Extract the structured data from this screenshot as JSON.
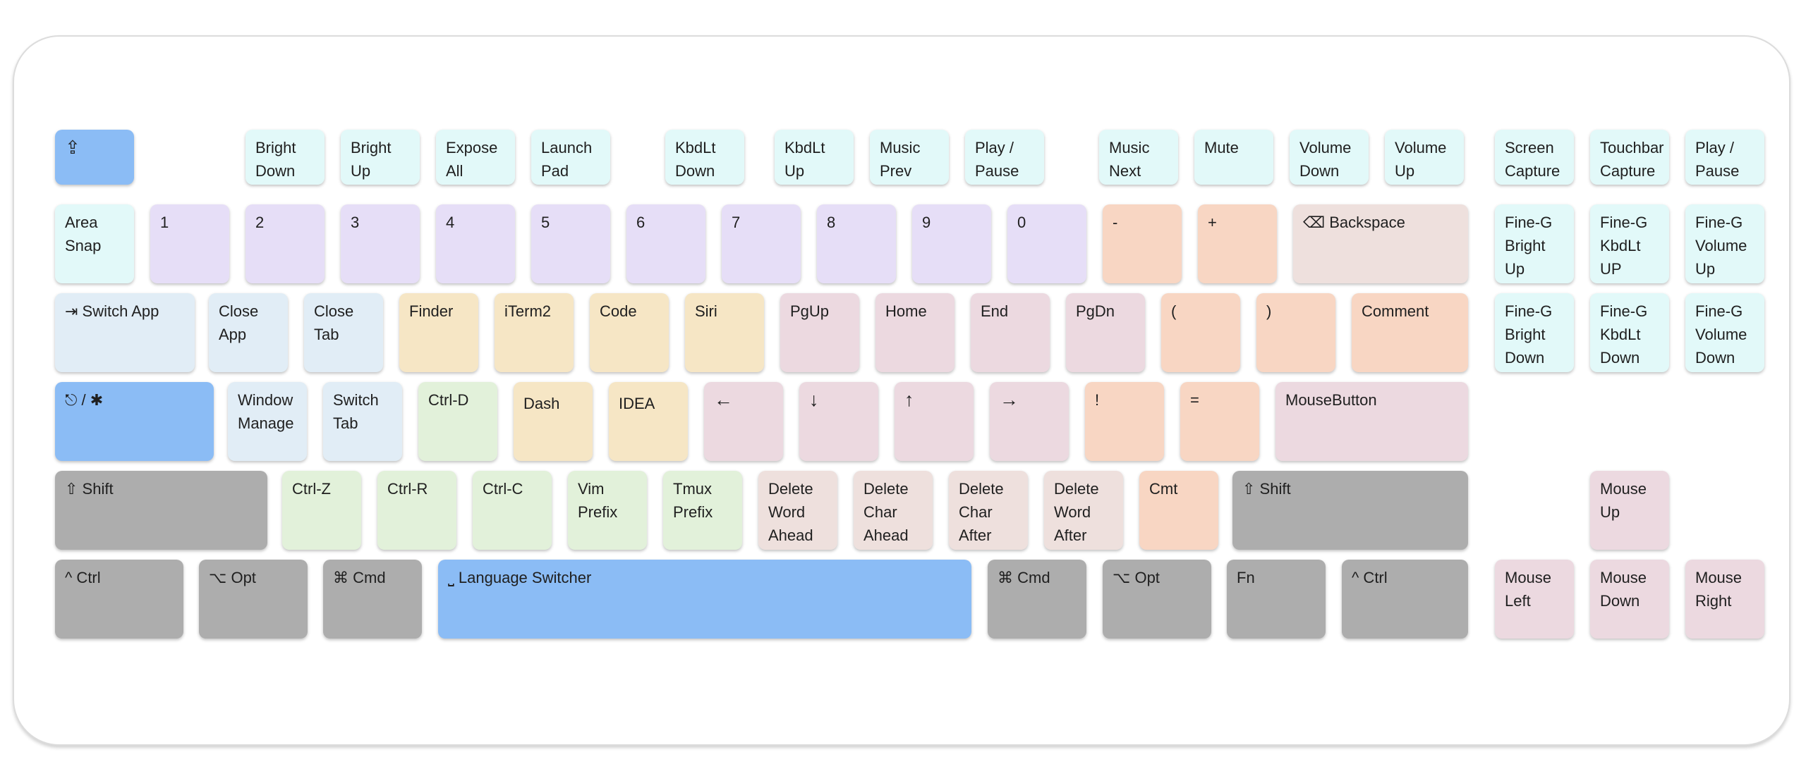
{
  "keyboard": {
    "rows": [
      [
        {
          "name": "fn-toggle-key",
          "label": "⇪",
          "color": "c-blue"
        },
        {
          "name": "bright-down-key",
          "label": "Bright\nDown",
          "color": "c-cyan"
        },
        {
          "name": "bright-up-key",
          "label": "Bright\nUp",
          "color": "c-cyan"
        },
        {
          "name": "expose-all-key",
          "label": "Expose\nAll",
          "color": "c-cyan"
        },
        {
          "name": "launch-pad-key",
          "label": "Launch\nPad",
          "color": "c-cyan"
        },
        {
          "name": "kbdlt-down-key",
          "label": "KbdLt\nDown",
          "color": "c-cyan"
        },
        {
          "name": "kbdlt-up-key",
          "label": "KbdLt\nUp",
          "color": "c-cyan"
        },
        {
          "name": "music-prev-key",
          "label": "Music\nPrev",
          "color": "c-cyan"
        },
        {
          "name": "play-pause-key",
          "label": "Play /\nPause",
          "color": "c-cyan"
        },
        {
          "name": "music-next-key",
          "label": "Music\nNext",
          "color": "c-cyan"
        },
        {
          "name": "mute-key",
          "label": "Mute",
          "color": "c-cyan"
        },
        {
          "name": "volume-down-key",
          "label": "Volume\nDown",
          "color": "c-cyan"
        },
        {
          "name": "volume-up-key",
          "label": "Volume\nUp",
          "color": "c-cyan"
        },
        {
          "name": "screen-capture-key",
          "label": "Screen\nCapture",
          "color": "c-cyan"
        },
        {
          "name": "touchbar-capture-key",
          "label": "Touchbar\nCapture",
          "color": "c-cyan"
        },
        {
          "name": "play-pause-key-right",
          "label": "Play /\nPause",
          "color": "c-cyan"
        }
      ],
      [
        {
          "name": "area-snap-key",
          "label": "Area\nSnap",
          "color": "c-cyan"
        },
        {
          "name": "key-1",
          "label": "1",
          "color": "c-purple"
        },
        {
          "name": "key-2",
          "label": "2",
          "color": "c-purple"
        },
        {
          "name": "key-3",
          "label": "3",
          "color": "c-purple"
        },
        {
          "name": "key-4",
          "label": "4",
          "color": "c-purple"
        },
        {
          "name": "key-5",
          "label": "5",
          "color": "c-purple"
        },
        {
          "name": "key-6",
          "label": "6",
          "color": "c-purple"
        },
        {
          "name": "key-7",
          "label": "7",
          "color": "c-purple"
        },
        {
          "name": "key-8",
          "label": "8",
          "color": "c-purple"
        },
        {
          "name": "key-9",
          "label": "9",
          "color": "c-purple"
        },
        {
          "name": "key-0",
          "label": "0",
          "color": "c-purple"
        },
        {
          "name": "minus-key",
          "label": "-",
          "color": "c-peach"
        },
        {
          "name": "plus-key",
          "label": "+",
          "color": "c-peach"
        },
        {
          "name": "backspace-key",
          "label": "⌫ Backspace",
          "color": "c-bs"
        },
        {
          "name": "fine-bright-up-key",
          "label": "Fine-G\nBright\nUp",
          "color": "c-cyan"
        },
        {
          "name": "fine-kbdlt-up-key",
          "label": "Fine-G\nKbdLt\nUP",
          "color": "c-cyan"
        },
        {
          "name": "fine-volume-up-key",
          "label": "Fine-G\nVolume\nUp",
          "color": "c-cyan"
        }
      ],
      [
        {
          "name": "switch-app-key",
          "label": "⇥ Switch App",
          "color": "c-sky"
        },
        {
          "name": "close-app-key",
          "label": "Close\nApp",
          "color": "c-sky"
        },
        {
          "name": "close-tab-key",
          "label": "Close\nTab",
          "color": "c-sky"
        },
        {
          "name": "finder-key",
          "label": "Finder",
          "color": "c-cream"
        },
        {
          "name": "iterm2-key",
          "label": "iTerm2",
          "color": "c-cream"
        },
        {
          "name": "code-key",
          "label": "Code",
          "color": "c-cream"
        },
        {
          "name": "siri-key",
          "label": "Siri",
          "color": "c-cream"
        },
        {
          "name": "pgup-key",
          "label": "PgUp",
          "color": "c-pink"
        },
        {
          "name": "home-key",
          "label": "Home",
          "color": "c-pink"
        },
        {
          "name": "end-key",
          "label": "End",
          "color": "c-pink"
        },
        {
          "name": "pgdn-key",
          "label": "PgDn",
          "color": "c-pink"
        },
        {
          "name": "open-paren-key",
          "label": "(",
          "color": "c-peach"
        },
        {
          "name": "close-paren-key",
          "label": ")",
          "color": "c-peach"
        },
        {
          "name": "comment-key",
          "label": "Comment",
          "color": "c-peach"
        },
        {
          "name": "fine-bright-down-key",
          "label": "Fine-G\nBright\nDown",
          "color": "c-cyan"
        },
        {
          "name": "fine-kbdlt-down-key",
          "label": "Fine-G\nKbdLt\nDown",
          "color": "c-cyan"
        },
        {
          "name": "fine-volume-down-key",
          "label": "Fine-G\nVolume\nDown",
          "color": "c-cyan"
        }
      ],
      [
        {
          "name": "hyper-key",
          "label": "⎋ / ✱",
          "color": "c-blue"
        },
        {
          "name": "window-manage-key",
          "label": "Window\nManage",
          "color": "c-sky"
        },
        {
          "name": "switch-tab-key",
          "label": "Switch\nTab",
          "color": "c-sky"
        },
        {
          "name": "ctrl-d-key",
          "label": "Ctrl-D",
          "color": "c-green"
        },
        {
          "name": "dash-key",
          "label": "Dash",
          "color": "c-cream"
        },
        {
          "name": "idea-key",
          "label": "IDEA",
          "color": "c-cream"
        },
        {
          "name": "arrow-left-key",
          "label": "←",
          "color": "c-pink"
        },
        {
          "name": "arrow-down-key",
          "label": "↓",
          "color": "c-pink"
        },
        {
          "name": "arrow-up-key",
          "label": "↑",
          "color": "c-pink"
        },
        {
          "name": "arrow-right-key",
          "label": "→",
          "color": "c-pink"
        },
        {
          "name": "exclaim-key",
          "label": "!",
          "color": "c-peach"
        },
        {
          "name": "equals-key",
          "label": "=",
          "color": "c-peach"
        },
        {
          "name": "mouse-button-key",
          "label": "MouseButton",
          "color": "c-pink"
        }
      ],
      [
        {
          "name": "left-shift-key",
          "label": "⇧ Shift",
          "color": "c-gray"
        },
        {
          "name": "ctrl-z-key",
          "label": "Ctrl-Z",
          "color": "c-green"
        },
        {
          "name": "ctrl-r-key",
          "label": "Ctrl-R",
          "color": "c-green"
        },
        {
          "name": "ctrl-c-key",
          "label": "Ctrl-C",
          "color": "c-green"
        },
        {
          "name": "vim-prefix-key",
          "label": "Vim\nPrefix",
          "color": "c-green"
        },
        {
          "name": "tmux-prefix-key",
          "label": "Tmux\nPrefix",
          "color": "c-green"
        },
        {
          "name": "delete-word-ahead-key",
          "label": "Delete\nWord\nAhead",
          "color": "c-bs"
        },
        {
          "name": "delete-char-ahead-key",
          "label": "Delete\nChar\nAhead",
          "color": "c-bs"
        },
        {
          "name": "delete-char-after-key",
          "label": "Delete\nChar\nAfter",
          "color": "c-bs"
        },
        {
          "name": "delete-word-after-key",
          "label": "Delete\nWord\nAfter",
          "color": "c-bs"
        },
        {
          "name": "cmt-key",
          "label": "Cmt",
          "color": "c-peach"
        },
        {
          "name": "right-shift-key",
          "label": "⇧ Shift",
          "color": "c-gray"
        },
        {
          "name": "mouse-up-key",
          "label": "Mouse\nUp",
          "color": "c-pink"
        }
      ],
      [
        {
          "name": "left-ctrl-key",
          "label": "^ Ctrl",
          "color": "c-gray"
        },
        {
          "name": "left-opt-key",
          "label": "⌥ Opt",
          "color": "c-gray"
        },
        {
          "name": "left-cmd-key",
          "label": "⌘ Cmd",
          "color": "c-gray"
        },
        {
          "name": "language-switcher-key",
          "label": "⎵ Language Switcher",
          "color": "c-blue"
        },
        {
          "name": "right-cmd-key",
          "label": "⌘ Cmd",
          "color": "c-gray"
        },
        {
          "name": "right-opt-key",
          "label": "⌥ Opt",
          "color": "c-gray"
        },
        {
          "name": "fn-key",
          "label": "Fn",
          "color": "c-gray"
        },
        {
          "name": "right-ctrl-key",
          "label": "^ Ctrl",
          "color": "c-gray"
        },
        {
          "name": "mouse-left-key",
          "label": "Mouse\nLeft",
          "color": "c-pink"
        },
        {
          "name": "mouse-down-key",
          "label": "Mouse\nDown",
          "color": "c-pink"
        },
        {
          "name": "mouse-right-key",
          "label": "Mouse\nRight",
          "color": "c-pink"
        }
      ]
    ]
  }
}
